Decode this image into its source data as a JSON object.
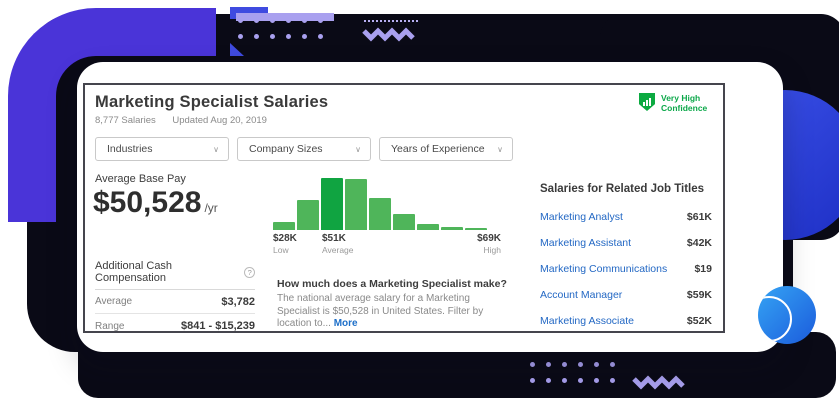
{
  "card": {
    "title": "Marketing Specialist Salaries",
    "salaries_count": "8,777 Salaries",
    "updated": "Updated Aug 20, 2019",
    "confidence_badge": {
      "line1": "Very High",
      "line2": "Confidence"
    }
  },
  "filters": [
    {
      "label": "Industries"
    },
    {
      "label": "Company Sizes"
    },
    {
      "label": "Years of Experience"
    }
  ],
  "average_base_pay": {
    "label": "Average Base Pay",
    "amount": "$50,528",
    "period": "/yr"
  },
  "chart_data": {
    "type": "bar",
    "title": "Salary distribution histogram",
    "values": [
      15,
      58,
      100,
      98,
      62,
      31,
      12,
      6,
      4
    ],
    "highlight_index": 2,
    "bar_color": "#4fb55a",
    "highlight_color": "#10a441",
    "markers": {
      "low": {
        "value": "$28K",
        "label": "Low"
      },
      "average": {
        "value": "$51K",
        "label": "Average"
      },
      "high": {
        "value": "$69K",
        "label": "High"
      }
    }
  },
  "additional_cash_compensation": {
    "header": "Additional Cash Compensation",
    "help_icon": "?",
    "rows": [
      {
        "label": "Average",
        "value": "$3,782"
      },
      {
        "label": "Range",
        "value": "$841 - $15,239"
      }
    ]
  },
  "how_much": {
    "question": "How much does a Marketing Specialist make?",
    "answer": "The national average salary for a Marketing Specialist is $50,528 in United States. Filter by location to...",
    "more_link": "More"
  },
  "related": {
    "header": "Salaries for Related Job Titles",
    "rows": [
      {
        "title": "Marketing Analyst",
        "salary": "$61K"
      },
      {
        "title": "Marketing Assistant",
        "salary": "$42K"
      },
      {
        "title": "Marketing Communications",
        "salary": "$19"
      },
      {
        "title": "Account Manager",
        "salary": "$59K"
      },
      {
        "title": "Marketing Associate",
        "salary": "$52K"
      }
    ]
  },
  "colors": {
    "navy": "#0a0a16",
    "purple_ring": "#4a34d8",
    "lavender": "#a9a0ef",
    "green": "#0caa41",
    "bar_green": "#4fb55a",
    "bar_dark_green": "#10a441",
    "link_blue": "#2368c4",
    "circle_blue": "#1d2ec4"
  }
}
